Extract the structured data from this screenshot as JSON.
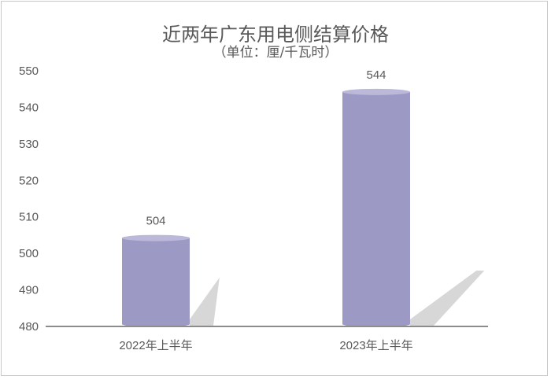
{
  "chart_data": {
    "type": "bar",
    "title": "近两年广东用电侧结算价格",
    "subtitle": "（单位：厘/千瓦时）",
    "categories": [
      "2022年上半年",
      "2023年上半年"
    ],
    "values": [
      504,
      544
    ],
    "data_labels": [
      "504",
      "544"
    ],
    "ylim": [
      480,
      550
    ],
    "yticks": [
      480,
      490,
      500,
      510,
      520,
      530,
      540,
      550
    ],
    "grid": false,
    "legend": "none",
    "bar_style": "cylinder",
    "colors": {
      "bar": "#9d99c5",
      "bar_top": "#bcb8da",
      "shadow": "#d0d0d0",
      "axis": "#8c8c8c",
      "text": "#595959"
    }
  }
}
